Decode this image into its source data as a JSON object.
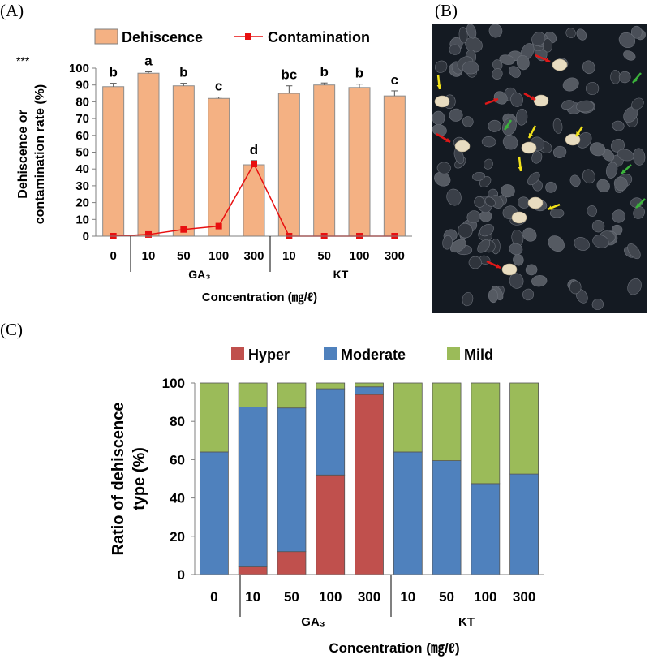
{
  "panel_labels": {
    "a": "(A)",
    "b": "(B)",
    "c": "(C)"
  },
  "chart_data": [
    {
      "type": "bar",
      "panel": "(A)",
      "categories": [
        "0",
        "10",
        "50",
        "100",
        "300",
        "10",
        "50",
        "100",
        "300"
      ],
      "groups": [
        {
          "label": "GA₃",
          "from": 1,
          "to": 4
        },
        {
          "label": "KT",
          "from": 5,
          "to": 8
        }
      ],
      "ylim": [
        0,
        100
      ],
      "yticks": [
        0,
        10,
        20,
        30,
        40,
        50,
        60,
        70,
        80,
        90,
        100
      ],
      "ylabel_lines": [
        "Dehiscence or",
        "contamination rate (%)"
      ],
      "xlabel": "Concentration (㎎/ℓ)",
      "significance_mark": "***",
      "series": [
        {
          "name": "Dehiscence",
          "kind": "bar",
          "color": "#f4b183",
          "values": [
            89,
            97,
            89.5,
            82,
            42.5,
            85,
            90,
            88.5,
            83.5
          ],
          "errors": [
            2,
            0.8,
            1.5,
            0.8,
            2.5,
            4.5,
            1.2,
            2,
            3
          ],
          "letters": [
            "b",
            "a",
            "b",
            "c",
            "d",
            "bc",
            "b",
            "b",
            "c"
          ]
        },
        {
          "name": "Contamination",
          "kind": "line",
          "color": "#e81010",
          "values": [
            0,
            1,
            4,
            6,
            43,
            0,
            0,
            0,
            0
          ]
        }
      ]
    },
    {
      "type": "bar",
      "panel": "(C)",
      "stacked": true,
      "categories": [
        "0",
        "10",
        "50",
        "100",
        "300",
        "10",
        "50",
        "100",
        "300"
      ],
      "groups": [
        {
          "label": "GA₃",
          "from": 1,
          "to": 4
        },
        {
          "label": "KT",
          "from": 5,
          "to": 8
        }
      ],
      "ylim": [
        0,
        100
      ],
      "yticks": [
        0,
        20,
        40,
        60,
        80,
        100
      ],
      "ylabel_lines": [
        "Ratio of dehiscence",
        "type (%)"
      ],
      "xlabel": "Concentration (㎎/ℓ)",
      "series": [
        {
          "name": "Hyper",
          "color": "#c0504d",
          "values": [
            0,
            4,
            12,
            52,
            94,
            0,
            0,
            0,
            0
          ]
        },
        {
          "name": "Moderate",
          "color": "#4f81bd",
          "values": [
            64,
            83.5,
            75,
            45,
            4,
            64,
            59.5,
            47.5,
            52.5
          ]
        },
        {
          "name": "Mild",
          "color": "#9bbb59",
          "values": [
            36,
            12.5,
            13,
            3,
            2,
            36,
            40.5,
            52.5,
            47.5
          ]
        }
      ]
    }
  ],
  "photo": {
    "background": "#141a22",
    "arrow_colors": {
      "red": "#e01818",
      "yellow": "#f2e21a",
      "green": "#3cb43c"
    }
  }
}
